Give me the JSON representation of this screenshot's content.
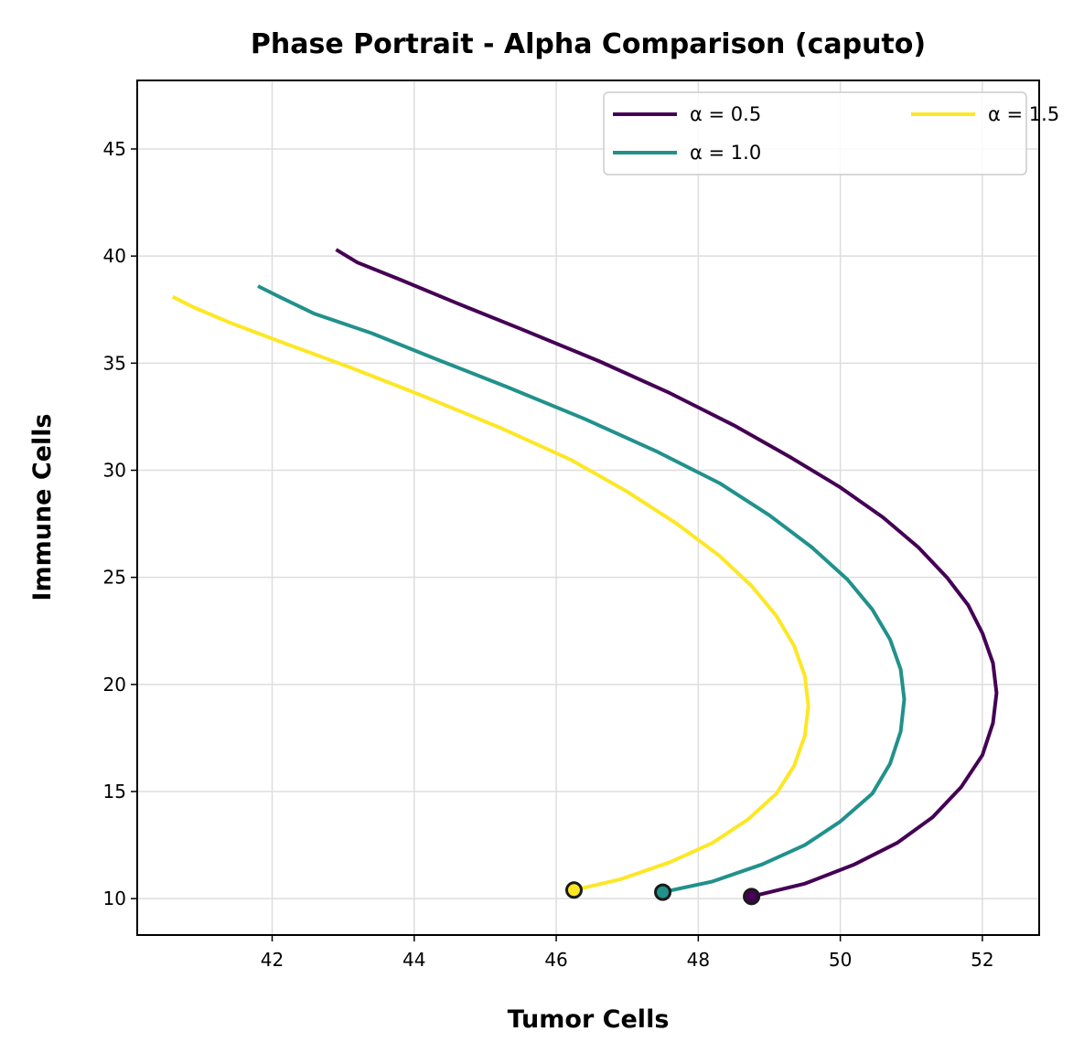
{
  "chart_data": {
    "type": "line",
    "title": "Phase Portrait - Alpha Comparison (caputo)",
    "xlabel": "Tumor Cells",
    "ylabel": "Immune Cells",
    "xlim": [
      40.1,
      52.8
    ],
    "ylim": [
      8.3,
      48.2
    ],
    "xticks": [
      42,
      44,
      46,
      48,
      50,
      52
    ],
    "yticks": [
      10,
      15,
      20,
      25,
      30,
      35,
      40,
      45
    ],
    "grid": true,
    "legend_position": "top-right",
    "legend_columns": 2,
    "series": [
      {
        "name": "α = 0.5",
        "color": "#440154",
        "start_marker": true,
        "points": [
          [
            48.75,
            10.1
          ],
          [
            49.5,
            10.7
          ],
          [
            50.2,
            11.6
          ],
          [
            50.8,
            12.6
          ],
          [
            51.3,
            13.8
          ],
          [
            51.7,
            15.2
          ],
          [
            52.0,
            16.7
          ],
          [
            52.15,
            18.2
          ],
          [
            52.2,
            19.6
          ],
          [
            52.15,
            21.0
          ],
          [
            52.0,
            22.4
          ],
          [
            51.8,
            23.7
          ],
          [
            51.5,
            25.0
          ],
          [
            51.1,
            26.4
          ],
          [
            50.6,
            27.8
          ],
          [
            50.0,
            29.2
          ],
          [
            49.3,
            30.6
          ],
          [
            48.5,
            32.1
          ],
          [
            47.6,
            33.6
          ],
          [
            46.6,
            35.1
          ],
          [
            45.5,
            36.6
          ],
          [
            44.6,
            37.8
          ],
          [
            43.8,
            38.9
          ],
          [
            43.2,
            39.7
          ],
          [
            42.9,
            40.3
          ]
        ]
      },
      {
        "name": "α = 1.0",
        "color": "#21918c",
        "start_marker": true,
        "points": [
          [
            47.5,
            10.3
          ],
          [
            48.2,
            10.8
          ],
          [
            48.9,
            11.6
          ],
          [
            49.5,
            12.5
          ],
          [
            50.0,
            13.6
          ],
          [
            50.45,
            14.9
          ],
          [
            50.7,
            16.3
          ],
          [
            50.85,
            17.8
          ],
          [
            50.9,
            19.3
          ],
          [
            50.85,
            20.7
          ],
          [
            50.7,
            22.1
          ],
          [
            50.45,
            23.5
          ],
          [
            50.1,
            24.9
          ],
          [
            49.6,
            26.4
          ],
          [
            49.0,
            27.9
          ],
          [
            48.3,
            29.4
          ],
          [
            47.4,
            30.9
          ],
          [
            46.4,
            32.4
          ],
          [
            45.3,
            33.9
          ],
          [
            44.3,
            35.2
          ],
          [
            43.4,
            36.4
          ],
          [
            42.6,
            37.3
          ],
          [
            42.1,
            38.1
          ],
          [
            41.8,
            38.6
          ]
        ]
      },
      {
        "name": "α = 1.5",
        "color": "#fde725",
        "start_marker": true,
        "points": [
          [
            46.25,
            10.4
          ],
          [
            46.9,
            10.9
          ],
          [
            47.6,
            11.7
          ],
          [
            48.2,
            12.6
          ],
          [
            48.7,
            13.7
          ],
          [
            49.1,
            14.9
          ],
          [
            49.35,
            16.2
          ],
          [
            49.5,
            17.6
          ],
          [
            49.55,
            19.0
          ],
          [
            49.5,
            20.4
          ],
          [
            49.35,
            21.8
          ],
          [
            49.1,
            23.2
          ],
          [
            48.75,
            24.6
          ],
          [
            48.3,
            26.0
          ],
          [
            47.7,
            27.5
          ],
          [
            47.0,
            29.0
          ],
          [
            46.2,
            30.5
          ],
          [
            45.2,
            32.0
          ],
          [
            44.1,
            33.5
          ],
          [
            43.1,
            34.8
          ],
          [
            42.2,
            35.9
          ],
          [
            41.4,
            36.9
          ],
          [
            40.9,
            37.6
          ],
          [
            40.6,
            38.1
          ]
        ]
      }
    ]
  }
}
